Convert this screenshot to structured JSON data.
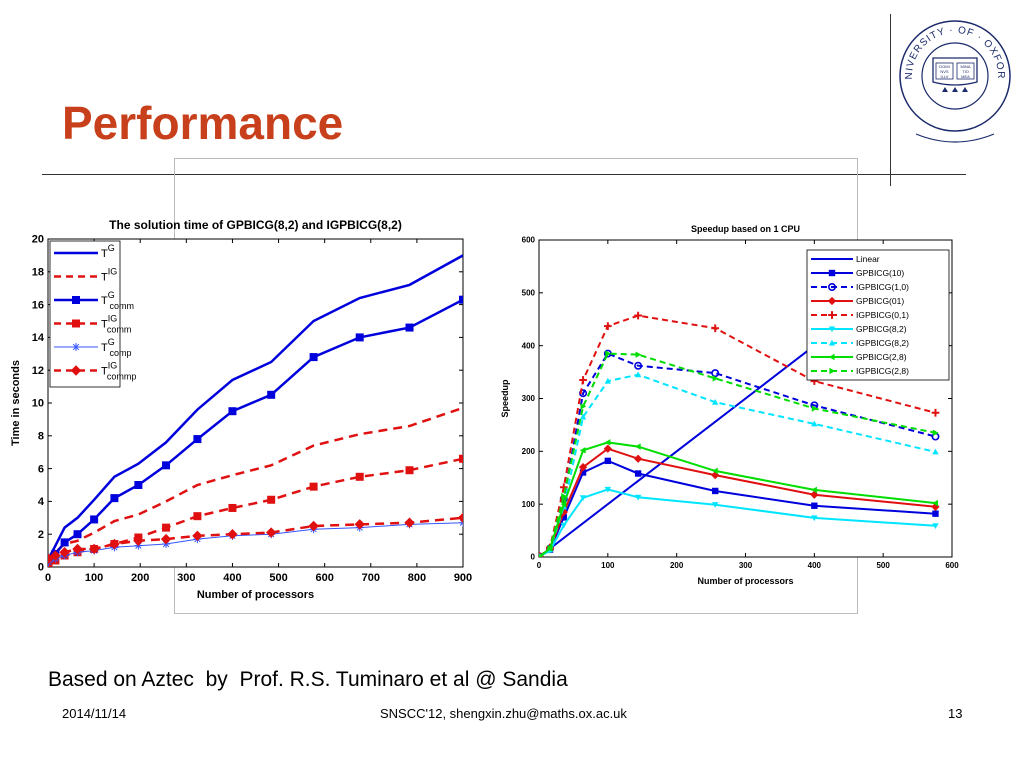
{
  "slide": {
    "title": "Performance",
    "caption": "Based on Aztec  by  Prof. R.S. Tuminaro et al @ Sandia",
    "footer_date": "2014/11/14",
    "footer_center": "SNSCC'12, shengxin.zhu@maths.ox.ac.uk",
    "footer_page": "13",
    "logo_text": "UNIVERSITY · OF · OXFORD",
    "logo_book_text": [
      "DOMI",
      "NVS",
      "ILLV",
      "MINA",
      "TIO",
      "MEA"
    ]
  },
  "colors": {
    "title": "#c8401b",
    "blue": "#0000dd",
    "red": "#e01010",
    "cyan": "#00e5ff",
    "green": "#00dd00",
    "logo": "#1b2a6b"
  },
  "chart_data": [
    {
      "type": "line",
      "title": "The solution time of GPBICG(8,2) and IGPBICG(8,2)",
      "xlabel": "Number of processors",
      "ylabel": "Time in seconds",
      "xlim": [
        0,
        900
      ],
      "ylim": [
        0,
        20
      ],
      "xticks": [
        0,
        100,
        200,
        300,
        400,
        500,
        600,
        700,
        800,
        900
      ],
      "yticks": [
        0,
        2,
        4,
        6,
        8,
        10,
        12,
        14,
        16,
        18,
        20
      ],
      "grid": false,
      "legend_position": "top-left",
      "series": [
        {
          "name": "T^G",
          "base": "T",
          "sup": "G",
          "sub": "",
          "color": "#0000dd",
          "dash": false,
          "marker": "none",
          "width": 2.5,
          "x": [
            1,
            16,
            36,
            64,
            100,
            144,
            196,
            256,
            324,
            400,
            484,
            576,
            676,
            784,
            900
          ],
          "y": [
            0.5,
            1.3,
            2.4,
            3.0,
            4.1,
            5.5,
            6.3,
            7.6,
            9.6,
            11.4,
            12.5,
            15.0,
            16.4,
            17.2,
            19.0
          ]
        },
        {
          "name": "T^IG",
          "base": "T",
          "sup": "IG",
          "sub": "",
          "color": "#e01010",
          "dash": true,
          "marker": "none",
          "width": 2.5,
          "x": [
            1,
            16,
            36,
            64,
            100,
            144,
            196,
            256,
            324,
            400,
            484,
            576,
            676,
            784,
            900
          ],
          "y": [
            0.3,
            0.9,
            1.4,
            1.6,
            2.1,
            2.8,
            3.2,
            4.0,
            5.0,
            5.6,
            6.2,
            7.4,
            8.1,
            8.6,
            9.7
          ]
        },
        {
          "name": "T^G_comm",
          "base": "T",
          "sup": "G",
          "sub": "comm",
          "color": "#0000dd",
          "dash": false,
          "marker": "square",
          "width": 2.5,
          "x": [
            1,
            16,
            36,
            64,
            100,
            144,
            196,
            256,
            324,
            400,
            484,
            576,
            676,
            784,
            900
          ],
          "y": [
            0.2,
            0.8,
            1.5,
            2.0,
            2.9,
            4.2,
            5.0,
            6.2,
            7.8,
            9.5,
            10.5,
            12.8,
            14.0,
            14.6,
            16.3
          ]
        },
        {
          "name": "T^IG_comm",
          "base": "T",
          "sup": "IG",
          "sub": "comm",
          "color": "#e01010",
          "dash": true,
          "marker": "square",
          "width": 2.5,
          "x": [
            1,
            16,
            36,
            64,
            100,
            144,
            196,
            256,
            324,
            400,
            484,
            576,
            676,
            784,
            900
          ],
          "y": [
            0.1,
            0.4,
            0.7,
            0.9,
            1.1,
            1.4,
            1.8,
            2.4,
            3.1,
            3.6,
            4.1,
            4.9,
            5.5,
            5.9,
            6.6
          ]
        },
        {
          "name": "T^G_comp",
          "base": "T",
          "sup": "G",
          "sub": "comp",
          "color": "#3355ff",
          "dash": false,
          "marker": "star",
          "width": 1,
          "x": [
            1,
            16,
            36,
            64,
            100,
            144,
            196,
            256,
            324,
            400,
            484,
            576,
            676,
            784,
            900
          ],
          "y": [
            0.3,
            0.5,
            0.7,
            0.9,
            1.0,
            1.2,
            1.3,
            1.4,
            1.7,
            1.9,
            2.0,
            2.3,
            2.4,
            2.6,
            2.7
          ]
        },
        {
          "name": "T^IG_commp",
          "base": "T",
          "sup": "IG",
          "sub": "commp",
          "color": "#e01010",
          "dash": true,
          "marker": "diamond",
          "width": 2.5,
          "x": [
            1,
            16,
            36,
            64,
            100,
            144,
            196,
            256,
            324,
            400,
            484,
            576,
            676,
            784,
            900
          ],
          "y": [
            0.5,
            0.7,
            0.9,
            1.1,
            1.1,
            1.4,
            1.6,
            1.7,
            1.9,
            2.0,
            2.1,
            2.5,
            2.6,
            2.7,
            3.0
          ]
        }
      ]
    },
    {
      "type": "line",
      "title": "Speedup based on 1 CPU",
      "xlabel": "Number of processors",
      "ylabel": "Speedup",
      "xlim": [
        0,
        600
      ],
      "ylim": [
        0,
        600
      ],
      "xticks": [
        0,
        100,
        200,
        300,
        400,
        500,
        600
      ],
      "yticks": [
        0,
        100,
        200,
        300,
        400,
        500,
        600
      ],
      "grid": false,
      "legend_position": "top-right",
      "series": [
        {
          "name": "Linear",
          "color": "#0000dd",
          "dash": false,
          "marker": "none",
          "x": [
            0,
            400
          ],
          "y": [
            0,
            400
          ]
        },
        {
          "name": "GPBICG(10)",
          "color": "#0000dd",
          "dash": false,
          "marker": "square",
          "x": [
            1,
            16,
            36,
            64,
            100,
            144,
            256,
            400,
            576
          ],
          "y": [
            1,
            14,
            75,
            160,
            182,
            158,
            125,
            97,
            82
          ]
        },
        {
          "name": "IGPBICG(1,0)",
          "color": "#0000dd",
          "dash": true,
          "marker": "circle",
          "x": [
            1,
            16,
            36,
            64,
            100,
            144,
            256,
            400,
            576
          ],
          "y": [
            1,
            16,
            110,
            310,
            385,
            362,
            348,
            287,
            228
          ]
        },
        {
          "name": "GPBICG(01)",
          "color": "#e01010",
          "dash": false,
          "marker": "diamond",
          "x": [
            1,
            16,
            36,
            64,
            100,
            144,
            256,
            400,
            576
          ],
          "y": [
            1,
            15,
            85,
            170,
            205,
            186,
            155,
            118,
            95
          ]
        },
        {
          "name": "IGPBICG(0,1)",
          "color": "#e01010",
          "dash": true,
          "marker": "plus",
          "x": [
            1,
            16,
            36,
            64,
            100,
            144,
            256,
            400,
            576
          ],
          "y": [
            1,
            18,
            132,
            335,
            437,
            457,
            433,
            333,
            273
          ]
        },
        {
          "name": "GPBICG(8,2)",
          "color": "#00e5ff",
          "dash": false,
          "marker": "tri-down",
          "x": [
            1,
            16,
            36,
            64,
            100,
            144,
            256,
            400,
            576
          ],
          "y": [
            1,
            12,
            60,
            112,
            128,
            113,
            99,
            74,
            59
          ]
        },
        {
          "name": "IGPBICG(8,2)",
          "color": "#00e5ff",
          "dash": true,
          "marker": "tri-up",
          "x": [
            1,
            16,
            36,
            64,
            100,
            144,
            256,
            400,
            576
          ],
          "y": [
            1,
            14,
            95,
            265,
            333,
            345,
            293,
            252,
            199
          ]
        },
        {
          "name": "GPBICG(2,8)",
          "color": "#00dd00",
          "dash": false,
          "marker": "tri-left",
          "x": [
            1,
            16,
            36,
            64,
            100,
            144,
            256,
            400,
            576
          ],
          "y": [
            1,
            16,
            100,
            202,
            217,
            209,
            163,
            127,
            102
          ]
        },
        {
          "name": "IGPBICG(2,8)",
          "color": "#00dd00",
          "dash": true,
          "marker": "tri-right",
          "x": [
            1,
            16,
            36,
            64,
            100,
            144,
            256,
            400,
            576
          ],
          "y": [
            1,
            17,
            115,
            285,
            385,
            383,
            338,
            281,
            235
          ]
        }
      ]
    }
  ]
}
